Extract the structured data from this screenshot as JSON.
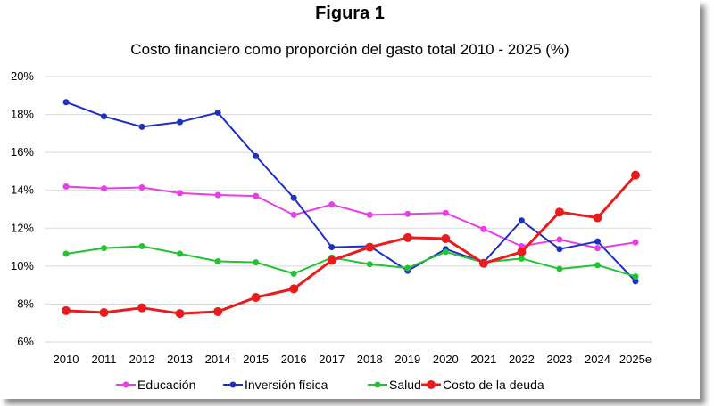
{
  "figure_label": "Figura 1",
  "chart_data": {
    "type": "line",
    "title": "Costo financiero como proporción del gasto total 2010 - 2025 (%)",
    "xlabel": "",
    "ylabel": "",
    "categories": [
      "2010",
      "2011",
      "2012",
      "2013",
      "2014",
      "2015",
      "2016",
      "2017",
      "2018",
      "2019",
      "2020",
      "2021",
      "2022",
      "2023",
      "2024",
      "2025e"
    ],
    "ylim": [
      6,
      20
    ],
    "yticks": [
      6,
      8,
      10,
      12,
      14,
      16,
      18,
      20
    ],
    "ytick_labels": [
      "6%",
      "8%",
      "10%",
      "12%",
      "14%",
      "16%",
      "18%",
      "20%"
    ],
    "grid": true,
    "legend_position": "bottom",
    "series": [
      {
        "name": "Educación",
        "color": "#e83ee8",
        "values": [
          14.2,
          14.1,
          14.15,
          13.85,
          13.75,
          13.7,
          12.7,
          13.25,
          12.7,
          12.75,
          12.8,
          11.95,
          11.05,
          11.4,
          10.95,
          11.25
        ]
      },
      {
        "name": "Inversión física",
        "color": "#1f2fbf",
        "values": [
          18.65,
          17.9,
          17.35,
          17.6,
          18.1,
          15.8,
          13.6,
          11.0,
          11.05,
          9.75,
          10.9,
          10.2,
          12.4,
          10.9,
          11.3,
          9.2
        ]
      },
      {
        "name": "Salud",
        "color": "#22c233",
        "values": [
          10.65,
          10.95,
          11.05,
          10.65,
          10.25,
          10.2,
          9.6,
          10.45,
          10.1,
          9.9,
          10.75,
          10.2,
          10.4,
          9.85,
          10.05,
          9.45
        ]
      },
      {
        "name": "Costo de la deuda",
        "color": "#e81c1c",
        "values": [
          7.65,
          7.55,
          7.8,
          7.5,
          7.6,
          8.35,
          8.8,
          10.3,
          11.0,
          11.5,
          11.45,
          10.15,
          10.75,
          12.85,
          12.55,
          14.8
        ]
      }
    ]
  }
}
